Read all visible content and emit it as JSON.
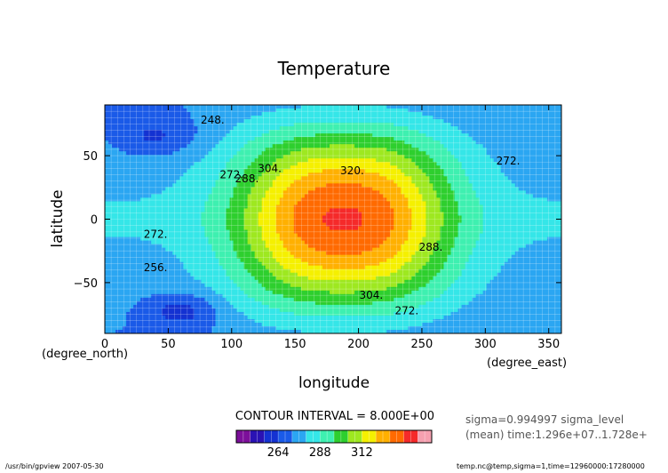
{
  "chart_data": {
    "type": "heatmap",
    "subtype": "filled-contour",
    "title": "Temperature",
    "xlabel": "longitude",
    "ylabel": "latitude",
    "x_unit": "(degree_east)",
    "y_unit": "(degree_north)",
    "xlim": [
      0,
      360
    ],
    "ylim": [
      -90,
      90
    ],
    "x_ticks": [
      0,
      50,
      100,
      150,
      200,
      250,
      300,
      350
    ],
    "y_ticks": [
      -50,
      0,
      50
    ],
    "x_tick_labels": [
      "0",
      "50",
      "100",
      "150",
      "200",
      "250",
      "300",
      "350"
    ],
    "y_tick_labels": [
      "−50",
      "0",
      "50"
    ],
    "grid": true,
    "contour_interval_text": "CONTOUR INTERVAL = 8.000E+00",
    "levels": [
      248,
      256,
      264,
      272,
      280,
      288,
      296,
      304,
      312,
      320,
      328
    ],
    "colorbar": {
      "colors": [
        "#7c0f9a",
        "#2a12b4",
        "#1432d2",
        "#1a5ae8",
        "#2ba6f2",
        "#35e6e8",
        "#3ef0b0",
        "#2ecf2e",
        "#9ee820",
        "#f5f000",
        "#ffb000",
        "#ff6a00",
        "#f52a2a",
        "#f5a0b0"
      ],
      "tick_values": [
        264,
        288,
        312
      ],
      "tick_labels": [
        "264",
        "288",
        "312"
      ]
    },
    "contour_labels": [
      {
        "text": "248.",
        "lon": 85,
        "lat": 78
      },
      {
        "text": "272.",
        "lon": 100,
        "lat": 35
      },
      {
        "text": "288.",
        "lon": 112,
        "lat": 32
      },
      {
        "text": "304.",
        "lon": 130,
        "lat": 40
      },
      {
        "text": "320.",
        "lon": 195,
        "lat": 38
      },
      {
        "text": "272.",
        "lon": 318,
        "lat": 46
      },
      {
        "text": "272.",
        "lon": 40,
        "lat": -12
      },
      {
        "text": "256.",
        "lon": 40,
        "lat": -38
      },
      {
        "text": "288.",
        "lon": 257,
        "lat": -22
      },
      {
        "text": "304.",
        "lon": 210,
        "lat": -60
      },
      {
        "text": "272.",
        "lon": 238,
        "lat": -72
      }
    ],
    "info_line1": "sigma=0.994997 sigma_level",
    "info_line2": "(mean) time:1.296e+07..1.728e+",
    "footer_left": "/usr/bin/gpview  2007-05-30",
    "footer_right": "temp.nc@temp,sigma=1,time=12960000:17280000"
  }
}
